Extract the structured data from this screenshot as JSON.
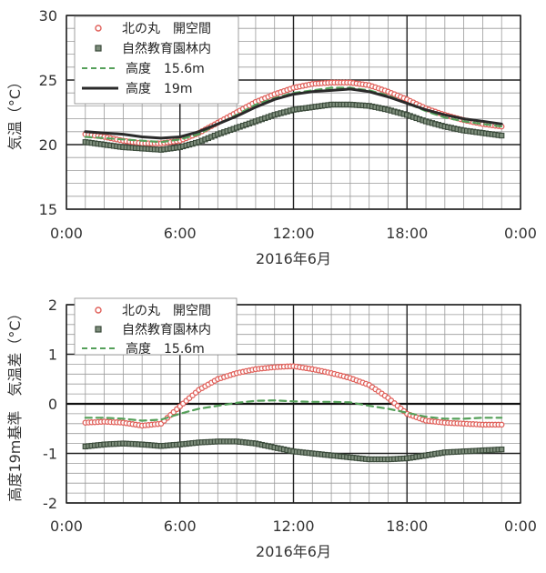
{
  "chart_data": [
    {
      "type": "line",
      "xlabel": "2016年6月",
      "ylabel": "気温（°C）",
      "x_ticks": [
        "0:00",
        "6:00",
        "12:00",
        "18:00",
        "0:00"
      ],
      "xlim": [
        0,
        24
      ],
      "ylim": [
        15,
        30
      ],
      "y_ticks": [
        15,
        20,
        25,
        30
      ],
      "grid": true,
      "legend_position": "top-left",
      "x_hours": [
        1,
        2,
        3,
        4,
        5,
        6,
        7,
        8,
        9,
        10,
        11,
        12,
        13,
        14,
        15,
        16,
        17,
        18,
        19,
        20,
        21,
        22,
        23
      ],
      "series": [
        {
          "name": "北の丸　開空間",
          "style": "circle-markers",
          "color": "#e0605a",
          "values": [
            20.8,
            20.6,
            20.3,
            20.1,
            20.1,
            20.3,
            20.9,
            21.7,
            22.5,
            23.3,
            23.9,
            24.4,
            24.7,
            24.8,
            24.8,
            24.6,
            24.1,
            23.5,
            22.8,
            22.3,
            21.9,
            21.6,
            21.4
          ]
        },
        {
          "name": "自然教育園林内",
          "style": "square-markers",
          "color": "#3a4a3a",
          "values": [
            20.2,
            20.0,
            19.8,
            19.7,
            19.6,
            19.8,
            20.2,
            20.8,
            21.3,
            21.8,
            22.3,
            22.7,
            22.9,
            23.1,
            23.1,
            23.0,
            22.7,
            22.3,
            21.8,
            21.4,
            21.1,
            20.9,
            20.7
          ]
        },
        {
          "name": "高度　15.6m",
          "style": "dashed-line",
          "color": "#55a05a",
          "values": [
            20.6,
            20.5,
            20.4,
            20.3,
            20.2,
            20.4,
            20.8,
            21.6,
            22.3,
            23.1,
            23.6,
            24.0,
            24.2,
            24.4,
            24.4,
            24.2,
            23.8,
            23.2,
            22.6,
            22.1,
            21.8,
            21.6,
            21.4
          ]
        },
        {
          "name": "高度　19m",
          "style": "solid-line",
          "color": "#2a2a2a",
          "values": [
            21.0,
            20.9,
            20.8,
            20.6,
            20.5,
            20.6,
            21.0,
            21.6,
            22.2,
            22.9,
            23.5,
            23.9,
            24.1,
            24.2,
            24.3,
            24.1,
            23.7,
            23.2,
            22.7,
            22.3,
            22.0,
            21.8,
            21.6
          ]
        }
      ]
    },
    {
      "type": "line",
      "xlabel": "2016年6月",
      "ylabel": "高度19m基準　気温差（°C）",
      "x_ticks": [
        "0:00",
        "6:00",
        "12:00",
        "18:00",
        "0:00"
      ],
      "xlim": [
        0,
        24
      ],
      "ylim": [
        -2,
        2
      ],
      "y_ticks": [
        -2,
        -1,
        0,
        1,
        2
      ],
      "grid": true,
      "legend_position": "top-left",
      "x_hours": [
        1,
        2,
        3,
        4,
        5,
        6,
        7,
        8,
        9,
        10,
        11,
        12,
        13,
        14,
        15,
        16,
        17,
        18,
        19,
        20,
        21,
        22,
        23
      ],
      "series": [
        {
          "name": "北の丸　開空間",
          "style": "circle-markers",
          "color": "#e0605a",
          "values": [
            -0.38,
            -0.36,
            -0.38,
            -0.44,
            -0.4,
            -0.05,
            0.28,
            0.5,
            0.62,
            0.7,
            0.74,
            0.76,
            0.7,
            0.62,
            0.52,
            0.38,
            0.12,
            -0.2,
            -0.34,
            -0.38,
            -0.4,
            -0.42,
            -0.42
          ]
        },
        {
          "name": "自然教育園林内",
          "style": "square-markers",
          "color": "#3a4a3a",
          "values": [
            -0.86,
            -0.82,
            -0.8,
            -0.82,
            -0.85,
            -0.82,
            -0.78,
            -0.76,
            -0.76,
            -0.8,
            -0.88,
            -0.96,
            -1.0,
            -1.04,
            -1.08,
            -1.12,
            -1.12,
            -1.1,
            -1.04,
            -0.98,
            -0.96,
            -0.94,
            -0.92
          ]
        },
        {
          "name": "高度　15.6m",
          "style": "dashed-line",
          "color": "#55a05a",
          "values": [
            -0.28,
            -0.28,
            -0.3,
            -0.34,
            -0.32,
            -0.2,
            -0.1,
            -0.04,
            0.02,
            0.06,
            0.07,
            0.05,
            0.04,
            0.04,
            0.03,
            -0.04,
            -0.1,
            -0.18,
            -0.26,
            -0.3,
            -0.3,
            -0.28,
            -0.28
          ]
        }
      ]
    }
  ]
}
